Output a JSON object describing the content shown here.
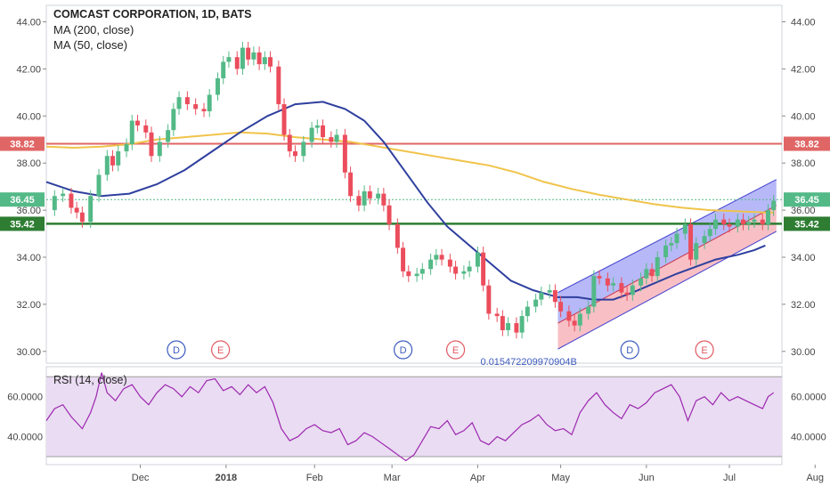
{
  "chart_data": {
    "type": "line",
    "title": "COMCAST CORPORATION, 1D, BATS",
    "series": [
      {
        "name": "MA (200, close)"
      },
      {
        "name": "MA (50, close)"
      }
    ],
    "price_axis": {
      "ticks": [
        "30.00",
        "32.00",
        "34.00",
        "36.00",
        "38.00",
        "40.00",
        "42.00",
        "44.00"
      ],
      "ylim": [
        29.5,
        44.7
      ]
    },
    "time_axis": {
      "ticks": [
        "Dec",
        "2018",
        "Feb",
        "Mar",
        "Apr",
        "May",
        "Jun",
        "Jul",
        "Aug"
      ],
      "tick_days": [
        34,
        65,
        97,
        125,
        156,
        186,
        217,
        247,
        278
      ]
    },
    "price_series": [
      [
        0,
        36.0
      ],
      [
        3,
        36.6
      ],
      [
        6,
        36.7
      ],
      [
        9,
        36.1
      ],
      [
        11,
        35.9
      ],
      [
        13,
        35.5
      ],
      [
        16,
        36.6
      ],
      [
        19,
        37.5
      ],
      [
        22,
        38.3
      ],
      [
        24,
        37.9
      ],
      [
        26,
        38.5
      ],
      [
        29,
        38.8
      ],
      [
        31,
        39.8
      ],
      [
        33,
        39.6
      ],
      [
        36,
        39.3
      ],
      [
        38,
        38.3
      ],
      [
        41,
        38.9
      ],
      [
        44,
        39.4
      ],
      [
        46,
        40.3
      ],
      [
        48,
        40.8
      ],
      [
        51,
        40.5
      ],
      [
        54,
        40.3
      ],
      [
        57,
        40.2
      ],
      [
        59,
        40.9
      ],
      [
        62,
        41.6
      ],
      [
        64,
        42.3
      ],
      [
        66,
        42.5
      ],
      [
        69,
        42.0
      ],
      [
        71,
        42.9
      ],
      [
        73,
        42.4
      ],
      [
        75,
        42.7
      ],
      [
        77,
        42.2
      ],
      [
        79,
        42.5
      ],
      [
        81,
        42.1
      ],
      [
        84,
        40.5
      ],
      [
        86,
        39.2
      ],
      [
        88,
        38.5
      ],
      [
        90,
        38.3
      ],
      [
        93,
        38.9
      ],
      [
        96,
        39.5
      ],
      [
        98,
        39.6
      ],
      [
        100,
        39.1
      ],
      [
        103,
        38.9
      ],
      [
        105,
        39.2
      ],
      [
        108,
        37.6
      ],
      [
        110,
        36.6
      ],
      [
        113,
        36.2
      ],
      [
        115,
        36.8
      ],
      [
        117,
        36.5
      ],
      [
        120,
        36.7
      ],
      [
        122,
        36.2
      ],
      [
        124,
        35.4
      ],
      [
        127,
        34.4
      ],
      [
        129,
        33.4
      ],
      [
        131,
        33.2
      ],
      [
        134,
        33.3
      ],
      [
        136,
        33.5
      ],
      [
        139,
        33.9
      ],
      [
        141,
        34.1
      ],
      [
        143,
        33.9
      ],
      [
        146,
        33.6
      ],
      [
        148,
        33.3
      ],
      [
        151,
        33.4
      ],
      [
        153,
        33.6
      ],
      [
        156,
        34.2
      ],
      [
        158,
        32.8
      ],
      [
        160,
        31.6
      ],
      [
        163,
        31.5
      ],
      [
        165,
        30.9
      ],
      [
        167,
        31.2
      ],
      [
        170,
        30.8
      ],
      [
        172,
        31.5
      ],
      [
        174,
        31.9
      ],
      [
        177,
        32.2
      ],
      [
        179,
        32.5
      ],
      [
        182,
        32.6
      ],
      [
        184,
        32.1
      ],
      [
        186,
        31.7
      ],
      [
        189,
        31.3
      ],
      [
        191,
        31.1
      ],
      [
        193,
        31.6
      ],
      [
        196,
        31.9
      ],
      [
        198,
        33.2
      ],
      [
        200,
        33.1
      ],
      [
        203,
        32.8
      ],
      [
        205,
        32.9
      ],
      [
        208,
        32.5
      ],
      [
        210,
        32.4
      ],
      [
        212,
        32.8
      ],
      [
        215,
        33.1
      ],
      [
        217,
        33.5
      ],
      [
        219,
        33.2
      ],
      [
        221,
        34.0
      ],
      [
        224,
        34.5
      ],
      [
        226,
        34.6
      ],
      [
        228,
        35.0
      ],
      [
        231,
        35.4
      ],
      [
        233,
        33.9
      ],
      [
        235,
        34.6
      ],
      [
        238,
        34.9
      ],
      [
        240,
        35.2
      ],
      [
        242,
        35.6
      ],
      [
        245,
        35.4
      ],
      [
        247,
        35.3
      ],
      [
        250,
        35.6
      ],
      [
        252,
        35.4
      ],
      [
        254,
        35.5
      ],
      [
        256,
        35.6
      ],
      [
        259,
        35.4
      ],
      [
        261,
        36.0
      ],
      [
        263,
        36.4
      ]
    ],
    "ma200": [
      [
        0,
        38.7
      ],
      [
        10,
        38.65
      ],
      [
        20,
        38.7
      ],
      [
        30,
        38.8
      ],
      [
        40,
        39.0
      ],
      [
        50,
        39.1
      ],
      [
        60,
        39.2
      ],
      [
        70,
        39.3
      ],
      [
        80,
        39.25
      ],
      [
        90,
        39.1
      ],
      [
        100,
        39.0
      ],
      [
        110,
        38.9
      ],
      [
        120,
        38.7
      ],
      [
        130,
        38.5
      ],
      [
        140,
        38.3
      ],
      [
        150,
        38.1
      ],
      [
        160,
        37.9
      ],
      [
        170,
        37.6
      ],
      [
        180,
        37.2
      ],
      [
        190,
        36.9
      ],
      [
        200,
        36.65
      ],
      [
        210,
        36.45
      ],
      [
        220,
        36.25
      ],
      [
        230,
        36.1
      ],
      [
        240,
        36.0
      ],
      [
        250,
        35.95
      ],
      [
        260,
        35.9
      ],
      [
        263,
        35.9
      ]
    ],
    "ma50": [
      [
        0,
        37.2
      ],
      [
        10,
        36.8
      ],
      [
        20,
        36.6
      ],
      [
        30,
        36.7
      ],
      [
        40,
        37.1
      ],
      [
        50,
        37.7
      ],
      [
        60,
        38.5
      ],
      [
        70,
        39.3
      ],
      [
        80,
        40.0
      ],
      [
        90,
        40.5
      ],
      [
        100,
        40.6
      ],
      [
        108,
        40.3
      ],
      [
        115,
        39.8
      ],
      [
        122,
        38.9
      ],
      [
        130,
        37.6
      ],
      [
        138,
        36.3
      ],
      [
        145,
        35.3
      ],
      [
        152,
        34.6
      ],
      [
        160,
        33.8
      ],
      [
        168,
        33.0
      ],
      [
        176,
        32.6
      ],
      [
        185,
        32.3
      ],
      [
        192,
        32.3
      ],
      [
        198,
        32.2
      ],
      [
        205,
        32.2
      ],
      [
        212,
        32.5
      ],
      [
        220,
        32.9
      ],
      [
        228,
        33.3
      ],
      [
        235,
        33.6
      ],
      [
        242,
        33.9
      ],
      [
        250,
        34.1
      ],
      [
        256,
        34.3
      ],
      [
        260,
        34.5
      ]
    ],
    "rsi": {
      "name": "RSI (14, close)",
      "ticks": [
        "40.0000",
        "60.0000"
      ],
      "bands": [
        30,
        70
      ],
      "ylim": [
        26,
        75
      ],
      "values": [
        [
          0,
          48
        ],
        [
          3,
          54
        ],
        [
          6,
          56
        ],
        [
          9,
          50
        ],
        [
          11,
          47
        ],
        [
          13,
          44
        ],
        [
          16,
          52
        ],
        [
          18,
          60
        ],
        [
          20,
          72
        ],
        [
          22,
          62
        ],
        [
          25,
          58
        ],
        [
          28,
          64
        ],
        [
          31,
          66
        ],
        [
          34,
          60
        ],
        [
          37,
          56
        ],
        [
          40,
          62
        ],
        [
          43,
          66
        ],
        [
          46,
          64
        ],
        [
          49,
          60
        ],
        [
          52,
          65
        ],
        [
          55,
          62
        ],
        [
          58,
          68
        ],
        [
          61,
          69
        ],
        [
          64,
          63
        ],
        [
          67,
          65
        ],
        [
          70,
          61
        ],
        [
          73,
          66
        ],
        [
          76,
          62
        ],
        [
          79,
          65
        ],
        [
          82,
          57
        ],
        [
          85,
          44
        ],
        [
          88,
          38
        ],
        [
          91,
          40
        ],
        [
          94,
          44
        ],
        [
          97,
          46
        ],
        [
          100,
          43
        ],
        [
          103,
          42
        ],
        [
          106,
          44
        ],
        [
          109,
          36
        ],
        [
          112,
          38
        ],
        [
          115,
          42
        ],
        [
          118,
          40
        ],
        [
          121,
          37
        ],
        [
          124,
          34
        ],
        [
          127,
          31
        ],
        [
          130,
          28
        ],
        [
          133,
          31
        ],
        [
          136,
          38
        ],
        [
          139,
          45
        ],
        [
          142,
          44
        ],
        [
          145,
          48
        ],
        [
          148,
          41
        ],
        [
          151,
          43
        ],
        [
          154,
          47
        ],
        [
          157,
          38
        ],
        [
          160,
          36
        ],
        [
          163,
          40
        ],
        [
          166,
          38
        ],
        [
          169,
          42
        ],
        [
          172,
          46
        ],
        [
          175,
          48
        ],
        [
          178,
          51
        ],
        [
          181,
          46
        ],
        [
          184,
          43
        ],
        [
          187,
          44
        ],
        [
          190,
          41
        ],
        [
          193,
          52
        ],
        [
          196,
          58
        ],
        [
          199,
          62
        ],
        [
          202,
          56
        ],
        [
          205,
          52
        ],
        [
          208,
          49
        ],
        [
          211,
          56
        ],
        [
          214,
          54
        ],
        [
          217,
          57
        ],
        [
          220,
          62
        ],
        [
          223,
          64
        ],
        [
          226,
          66
        ],
        [
          229,
          60
        ],
        [
          232,
          48
        ],
        [
          235,
          58
        ],
        [
          238,
          60
        ],
        [
          241,
          56
        ],
        [
          244,
          62
        ],
        [
          247,
          58
        ],
        [
          250,
          60
        ],
        [
          253,
          58
        ],
        [
          256,
          56
        ],
        [
          259,
          54
        ],
        [
          261,
          60
        ],
        [
          263,
          62
        ]
      ]
    },
    "events": [
      {
        "label": "D",
        "day": 47
      },
      {
        "label": "E",
        "day": 63
      },
      {
        "label": "D",
        "day": 129
      },
      {
        "label": "E",
        "day": 148
      },
      {
        "label": "D",
        "day": 211
      },
      {
        "label": "E",
        "day": 238
      }
    ],
    "price_labels": {
      "resistance": "38.82",
      "last": "36.45",
      "support": "35.42"
    },
    "horizontal_levels": {
      "resistance": 38.82,
      "last": 36.45,
      "support": 35.42
    },
    "channel": {
      "start_day": 185,
      "end_day": 264,
      "upper_start": 32.5,
      "upper_end": 37.3,
      "mid_start": 31.2,
      "mid_end": 36.2,
      "lower_start": 30.1,
      "lower_end": 35.1
    },
    "price_marker_text": "0.015472209970904B",
    "colors": {
      "up": "#53b987",
      "down": "#eb4d5c",
      "ma200": "#f0c34a",
      "ma50": "#2e3f9e",
      "resistance": "#e06666",
      "support": "#2e7d32",
      "last": "#53b987",
      "channel_upper": "#7b7ef0",
      "channel_lower": "#f28b95",
      "rsi": "#9c27b0",
      "rsi_band_fill": "#eadcf2",
      "event_dividend": "#3d5bbf",
      "event_earnings": "#e05b64"
    }
  }
}
